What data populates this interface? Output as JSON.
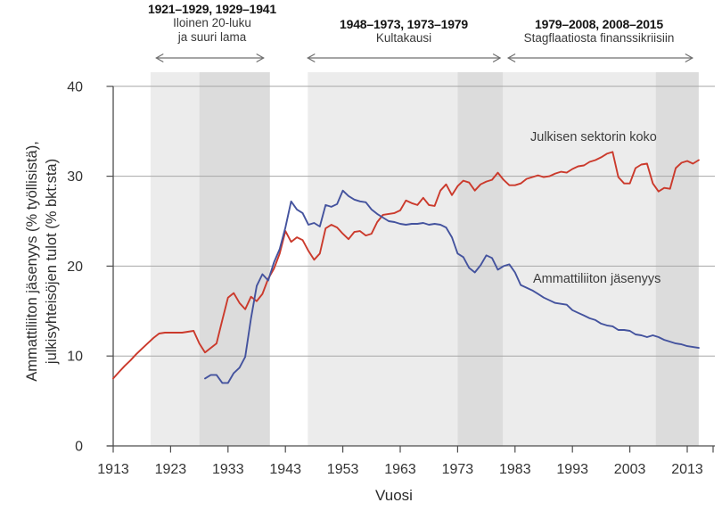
{
  "figure": {
    "xlabel": "Vuosi",
    "ylabel_line1": "Ammattiliiton jäsenyys (% työllisistä),",
    "ylabel_line2": "julkisyhteisöjen tulot (% bkt:sta)"
  },
  "annotations": [
    {
      "title": "1921–1929, 1929–1941",
      "line1": "Iloinen 20-luku",
      "line2": "ja suuri lama",
      "arrow_from": 1920.5,
      "arrow_to": 1939.2
    },
    {
      "title": "1948–1973, 1973–1979",
      "line1": "Kultakausi",
      "arrow_from": 1946.9,
      "arrow_to": 1980.4
    },
    {
      "title": "1979–2008, 2008–2015",
      "line1": "Stagflaatiosta finanssikriisiin",
      "arrow_from": 1981.8,
      "arrow_to": 2013.9
    }
  ],
  "chart_data": {
    "type": "line",
    "title": "",
    "xlabel": "Vuosi",
    "ylabel": "Ammattiliiton jäsenyys (% työllisistä), julkisyhteisöjen tulot (% bkt:sta)",
    "x_start": 1913,
    "xlim": [
      1913,
      2017
    ],
    "ylim": [
      0,
      40
    ],
    "grid": true,
    "legend_position": "inline-labels",
    "x_ticks": [
      1913,
      1923,
      1933,
      1943,
      1953,
      1963,
      1973,
      1983,
      1993,
      2003,
      2013
    ],
    "y_ticks": [
      0,
      10,
      20,
      30,
      40
    ],
    "bands": [
      {
        "from": 1919.5,
        "to": 1928.0,
        "shade": "light"
      },
      {
        "from": 1928.0,
        "to": 1940.3,
        "shade": "dark"
      },
      {
        "from": 1946.9,
        "to": 1973.0,
        "shade": "light"
      },
      {
        "from": 1973.0,
        "to": 1980.9,
        "shade": "dark"
      },
      {
        "from": 1980.9,
        "to": 2007.5,
        "shade": "light"
      },
      {
        "from": 2007.5,
        "to": 2015.0,
        "shade": "dark"
      }
    ],
    "series": [
      {
        "name": "Julkisen sektorin koko",
        "color": "#cb3a2c",
        "start_year": 1913,
        "values": [
          7.5,
          8.2,
          8.9,
          9.5,
          10.2,
          10.8,
          11.4,
          12.0,
          12.5,
          12.6,
          12.6,
          12.6,
          12.6,
          12.7,
          12.8,
          11.4,
          10.4,
          10.9,
          11.4,
          14.0,
          16.5,
          17.0,
          15.9,
          15.2,
          16.6,
          16.1,
          16.9,
          18.6,
          19.7,
          21.4,
          23.9,
          22.7,
          23.2,
          22.9,
          21.7,
          20.7,
          21.4,
          24.2,
          24.6,
          24.3,
          23.6,
          23.0,
          23.8,
          23.9,
          23.4,
          23.6,
          24.9,
          25.7,
          25.8,
          25.9,
          26.2,
          27.3,
          27.0,
          26.8,
          27.6,
          26.8,
          26.7,
          28.4,
          29.1,
          27.9,
          28.9,
          29.5,
          29.3,
          28.4,
          29.1,
          29.4,
          29.6,
          30.4,
          29.6,
          29.0,
          29.0,
          29.2,
          29.7,
          29.9,
          30.1,
          29.9,
          30.0,
          30.3,
          30.5,
          30.4,
          30.8,
          31.1,
          31.2,
          31.6,
          31.8,
          32.1,
          32.5,
          32.7,
          29.9,
          29.2,
          29.2,
          30.9,
          31.3,
          31.4,
          29.2,
          28.3,
          28.7,
          28.6,
          30.9,
          31.5,
          31.7,
          31.4,
          31.8
        ]
      },
      {
        "name": "Ammattiliiton jäsenyys",
        "color": "#44539e",
        "start_year": 1929,
        "values": [
          7.5,
          7.9,
          7.9,
          7.0,
          7.0,
          8.1,
          8.7,
          9.9,
          14.2,
          17.8,
          19.1,
          18.4,
          20.4,
          21.9,
          24.3,
          27.2,
          26.3,
          25.9,
          24.6,
          24.8,
          24.4,
          26.8,
          26.6,
          26.9,
          28.4,
          27.8,
          27.4,
          27.2,
          27.1,
          26.3,
          25.8,
          25.4,
          25.0,
          24.9,
          24.7,
          24.6,
          24.7,
          24.7,
          24.8,
          24.6,
          24.7,
          24.6,
          24.3,
          23.2,
          21.4,
          21.0,
          19.8,
          19.3,
          20.1,
          21.2,
          20.9,
          19.6,
          20.0,
          20.2,
          19.3,
          17.9,
          17.6,
          17.3,
          16.9,
          16.5,
          16.2,
          15.9,
          15.8,
          15.7,
          15.1,
          14.8,
          14.5,
          14.2,
          14.0,
          13.6,
          13.4,
          13.3,
          12.9,
          12.9,
          12.8,
          12.4,
          12.3,
          12.1,
          12.3,
          12.1,
          11.8,
          11.6,
          11.4,
          11.3,
          11.1,
          11.0,
          10.9
        ]
      }
    ]
  },
  "colors": {
    "band_light": "#ececec",
    "band_dark": "#dcdcdc",
    "gridline": "#a7a7a7",
    "axis": "#4d4d4d",
    "tick_text": "#333333",
    "arrow": "#6f6f6f"
  }
}
